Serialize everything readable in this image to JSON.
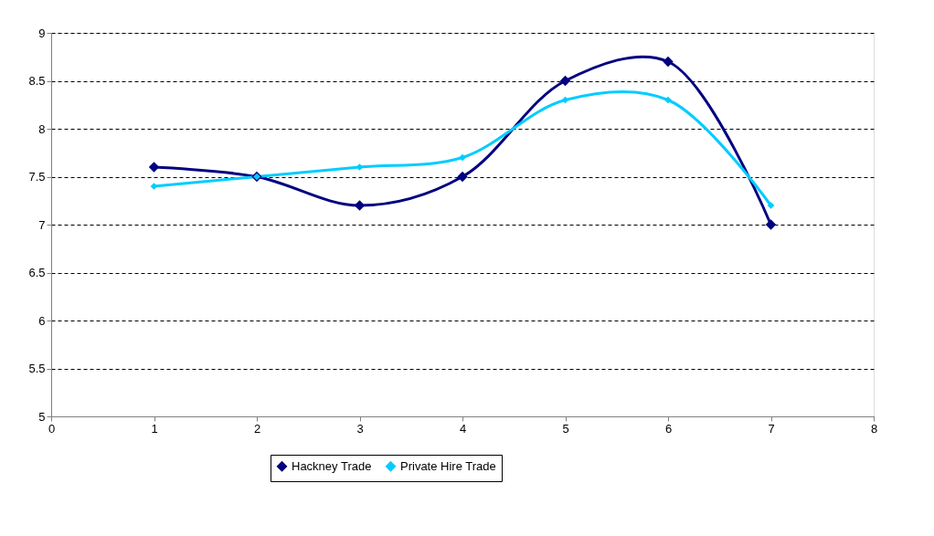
{
  "chart_data": {
    "type": "line",
    "x": [
      1,
      2,
      3,
      4,
      5,
      6,
      7
    ],
    "series": [
      {
        "name": "Hackney Trade",
        "color": "#000080",
        "values": [
          7.6,
          7.5,
          7.2,
          7.5,
          8.5,
          8.7,
          7.0
        ]
      },
      {
        "name": "Private Hire Trade",
        "color": "#00ccff",
        "values": [
          7.4,
          7.5,
          7.6,
          7.7,
          8.3,
          8.3,
          7.2
        ]
      }
    ],
    "xlim": [
      0,
      8
    ],
    "xticks": [
      0,
      1,
      2,
      3,
      4,
      5,
      6,
      7,
      8
    ],
    "ylim": [
      5,
      9
    ],
    "yticks": [
      5,
      5.5,
      6,
      6.5,
      7,
      7.5,
      8,
      8.5,
      9
    ],
    "grid": "y",
    "legend": "bottom",
    "marker": "diamond",
    "line_style": "solid"
  }
}
